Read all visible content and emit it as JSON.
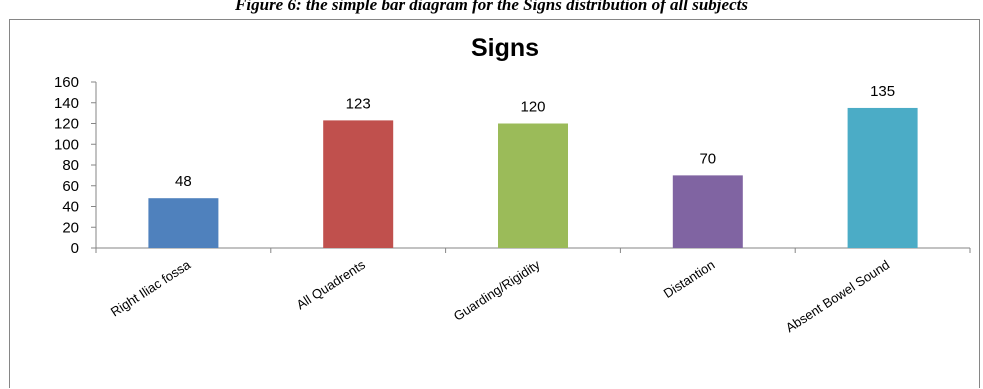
{
  "caption": "Figure 6: the simple bar diagram for the Signs distribution of all subjects",
  "chart_data": {
    "type": "bar",
    "title": "Signs",
    "xlabel": "",
    "ylabel": "",
    "categories": [
      "Right Iliac fossa",
      "All Quadrents",
      "Guarding/Rigidity",
      "Distantion",
      "Absent Bowel Sound"
    ],
    "values": [
      48,
      123,
      120,
      70,
      135
    ],
    "colors": [
      "#4F81BD",
      "#C0504D",
      "#9BBB59",
      "#8064A2",
      "#4BACC6"
    ],
    "ylim": [
      0,
      160
    ],
    "yticks": [
      0,
      20,
      40,
      60,
      80,
      100,
      120,
      140,
      160
    ],
    "grid": false,
    "legend": "none",
    "data_labels": true
  }
}
